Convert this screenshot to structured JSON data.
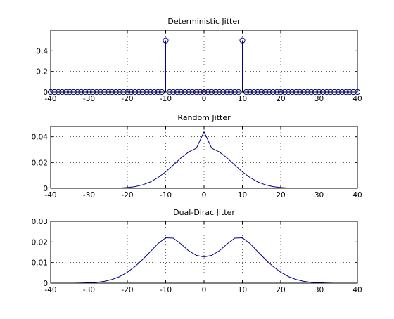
{
  "colors": {
    "series": "#00008b",
    "axes": "#000000",
    "grid": "#000000",
    "background": "#ffffff"
  },
  "chart_data": [
    {
      "type": "stem",
      "title": "Deterministic Jitter",
      "xlabel": "",
      "ylabel": "",
      "xlim": [
        -40,
        40
      ],
      "ylim": [
        0,
        0.6
      ],
      "xticks": [
        -40,
        -30,
        -20,
        -10,
        0,
        10,
        20,
        30,
        40
      ],
      "yticks": [
        0,
        0.2,
        0.4
      ],
      "ytick_labels": [
        "0",
        "0.2",
        "0.4"
      ],
      "grid": true,
      "marker": "circle",
      "x": [
        -40,
        -39,
        -38,
        -37,
        -36,
        -35,
        -34,
        -33,
        -32,
        -31,
        -30,
        -29,
        -28,
        -27,
        -26,
        -25,
        -24,
        -23,
        -22,
        -21,
        -20,
        -19,
        -18,
        -17,
        -16,
        -15,
        -14,
        -13,
        -12,
        -11,
        -10,
        -9,
        -8,
        -7,
        -6,
        -5,
        -4,
        -3,
        -2,
        -1,
        0,
        1,
        2,
        3,
        4,
        5,
        6,
        7,
        8,
        9,
        10,
        11,
        12,
        13,
        14,
        15,
        16,
        17,
        18,
        19,
        20,
        21,
        22,
        23,
        24,
        25,
        26,
        27,
        28,
        29,
        30,
        31,
        32,
        33,
        34,
        35,
        36,
        37,
        38,
        39,
        40
      ],
      "y": [
        0,
        0,
        0,
        0,
        0,
        0,
        0,
        0,
        0,
        0,
        0,
        0,
        0,
        0,
        0,
        0,
        0,
        0,
        0,
        0,
        0,
        0,
        0,
        0,
        0,
        0,
        0,
        0,
        0,
        0,
        0.5,
        0,
        0,
        0,
        0,
        0,
        0,
        0,
        0,
        0,
        0,
        0,
        0,
        0,
        0,
        0,
        0,
        0,
        0,
        0,
        0.5,
        0,
        0,
        0,
        0,
        0,
        0,
        0,
        0,
        0,
        0,
        0,
        0,
        0,
        0,
        0,
        0,
        0,
        0,
        0,
        0,
        0,
        0,
        0,
        0,
        0,
        0,
        0,
        0,
        0,
        0
      ]
    },
    {
      "type": "line",
      "title": "Random Jitter",
      "xlabel": "",
      "ylabel": "",
      "xlim": [
        -40,
        40
      ],
      "ylim": [
        0,
        0.048
      ],
      "xticks": [
        -40,
        -30,
        -20,
        -10,
        0,
        10,
        20,
        30,
        40
      ],
      "yticks": [
        0,
        0.02,
        0.04
      ],
      "ytick_labels": [
        "0",
        "0.02",
        "0.04"
      ],
      "grid": true,
      "x": [
        -40,
        -38,
        -36,
        -34,
        -32,
        -30,
        -28,
        -26,
        -24,
        -22,
        -20,
        -18,
        -16,
        -14,
        -12,
        -10,
        -8,
        -6,
        -4,
        -2,
        0,
        2,
        4,
        6,
        8,
        10,
        12,
        14,
        16,
        18,
        20,
        22,
        24,
        26,
        28,
        30,
        32,
        34,
        36,
        38,
        40
      ],
      "y": [
        0,
        0,
        0,
        0,
        0,
        0,
        0,
        0,
        0.0001,
        0.0002,
        0.0006,
        0.0013,
        0.0027,
        0.0049,
        0.0083,
        0.0128,
        0.0181,
        0.0236,
        0.0282,
        0.0311,
        0.0439,
        0.0311,
        0.0282,
        0.0236,
        0.0181,
        0.0128,
        0.0083,
        0.0049,
        0.0027,
        0.0013,
        0.0006,
        0.0002,
        0.0001,
        0,
        0,
        0,
        0,
        0,
        0,
        0,
        0
      ]
    },
    {
      "type": "line",
      "title": "Dual-Dirac Jitter",
      "xlabel": "",
      "ylabel": "",
      "xlim": [
        -40,
        40
      ],
      "ylim": [
        0,
        0.03
      ],
      "xticks": [
        -40,
        -30,
        -20,
        -10,
        0,
        10,
        20,
        30,
        40
      ],
      "yticks": [
        0,
        0.01,
        0.02,
        0.03
      ],
      "ytick_labels": [
        "0",
        "0.01",
        "0.02",
        "0.03"
      ],
      "grid": true,
      "x": [
        -40,
        -38,
        -36,
        -34,
        -32,
        -30,
        -28,
        -26,
        -24,
        -22,
        -20,
        -18,
        -16,
        -14,
        -12,
        -10,
        -8,
        -6,
        -4,
        -2,
        0,
        2,
        4,
        6,
        8,
        10,
        12,
        14,
        16,
        18,
        20,
        22,
        24,
        26,
        28,
        30,
        32,
        34,
        36,
        38,
        40
      ],
      "y": [
        0,
        0,
        0,
        0,
        0.0001,
        0.0002,
        0.0004,
        0.0009,
        0.0018,
        0.0032,
        0.0053,
        0.0081,
        0.0115,
        0.0153,
        0.0192,
        0.022,
        0.0218,
        0.019,
        0.0157,
        0.0135,
        0.0127,
        0.0135,
        0.0157,
        0.019,
        0.0218,
        0.022,
        0.0192,
        0.0153,
        0.0115,
        0.0081,
        0.0053,
        0.0032,
        0.0018,
        0.0009,
        0.0004,
        0.0002,
        0.0001,
        0,
        0,
        0,
        0
      ]
    }
  ]
}
